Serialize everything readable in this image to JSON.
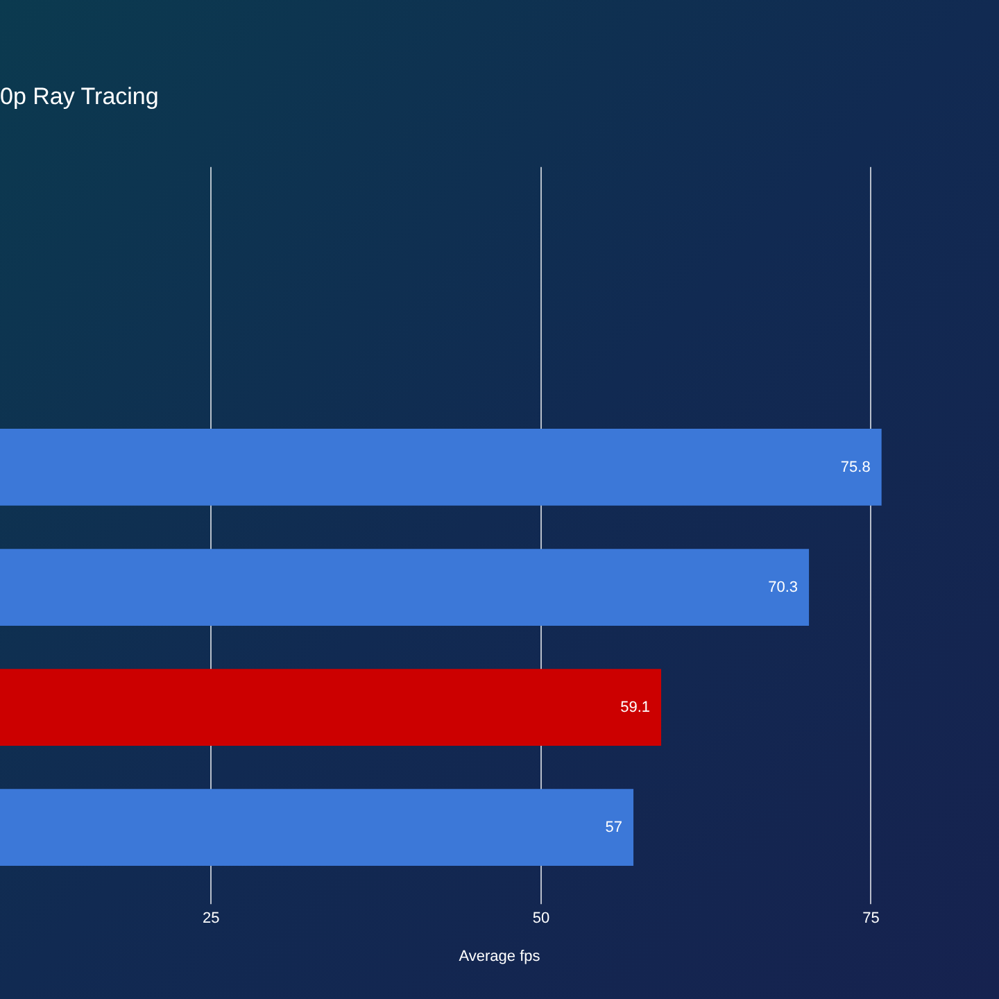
{
  "chart_data": {
    "type": "bar",
    "orientation": "horizontal",
    "title": "0p Ray Tracing",
    "xlabel": "Average fps",
    "categories": [
      null,
      null,
      null,
      null,
      null,
      null
    ],
    "values": [
      null,
      null,
      75.8,
      70.3,
      59.1,
      57
    ],
    "colors": [
      "#3c78d8",
      "#3c78d8",
      "#3c78d8",
      "#3c78d8",
      "#cc0000",
      "#3c78d8"
    ],
    "value_labels": [
      null,
      null,
      "75.8",
      "70.3",
      "59.1",
      "57"
    ],
    "xlim": [
      9,
      84.7
    ],
    "xticks": [
      25,
      50,
      75
    ],
    "grid": "x",
    "legend": false
  }
}
